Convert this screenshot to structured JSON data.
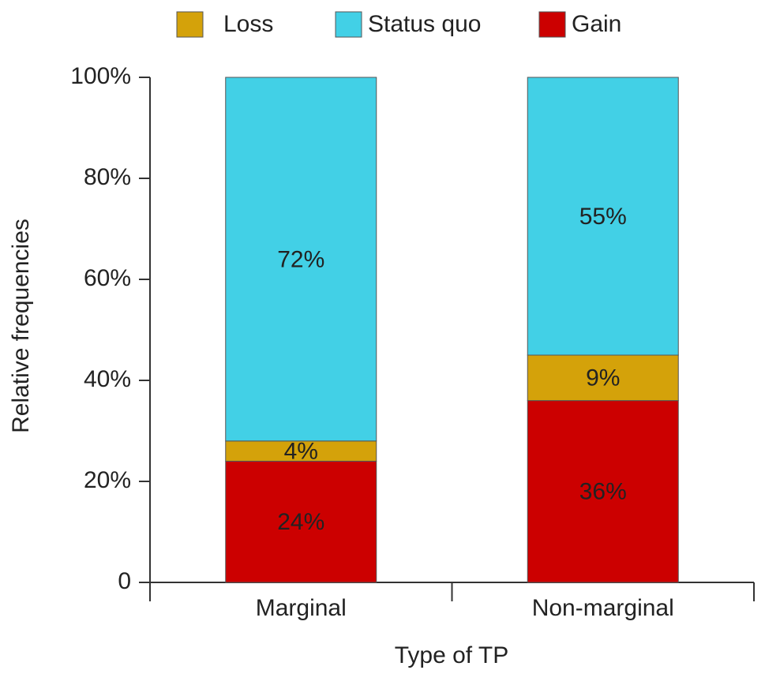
{
  "chart_data": {
    "type": "stacked_bar",
    "categories": [
      "Marginal",
      "Non-marginal"
    ],
    "series": [
      {
        "name": "Loss",
        "color": "#d4a20a",
        "values": [
          4,
          9
        ],
        "value_labels": [
          "4%",
          "9%"
        ]
      },
      {
        "name": "Status quo",
        "color": "#42d0e6",
        "values": [
          72,
          55
        ],
        "value_labels": [
          "72%",
          "55%"
        ]
      },
      {
        "name": "Gain",
        "color": "#cc0000",
        "values": [
          24,
          36
        ],
        "value_labels": [
          "24%",
          "36%"
        ]
      }
    ],
    "ylim": [
      0,
      100
    ],
    "yticks": [
      0,
      {
        "value": 20,
        "label": "20%"
      },
      {
        "value": 40,
        "label": "40%"
      },
      {
        "value": 60,
        "label": "60%"
      },
      {
        "value": 80,
        "label": "80%"
      },
      {
        "value": 100,
        "label": "100%"
      }
    ],
    "ylabel": "Relative frequencies",
    "xlabel": "Type of TP",
    "legend": "top"
  }
}
